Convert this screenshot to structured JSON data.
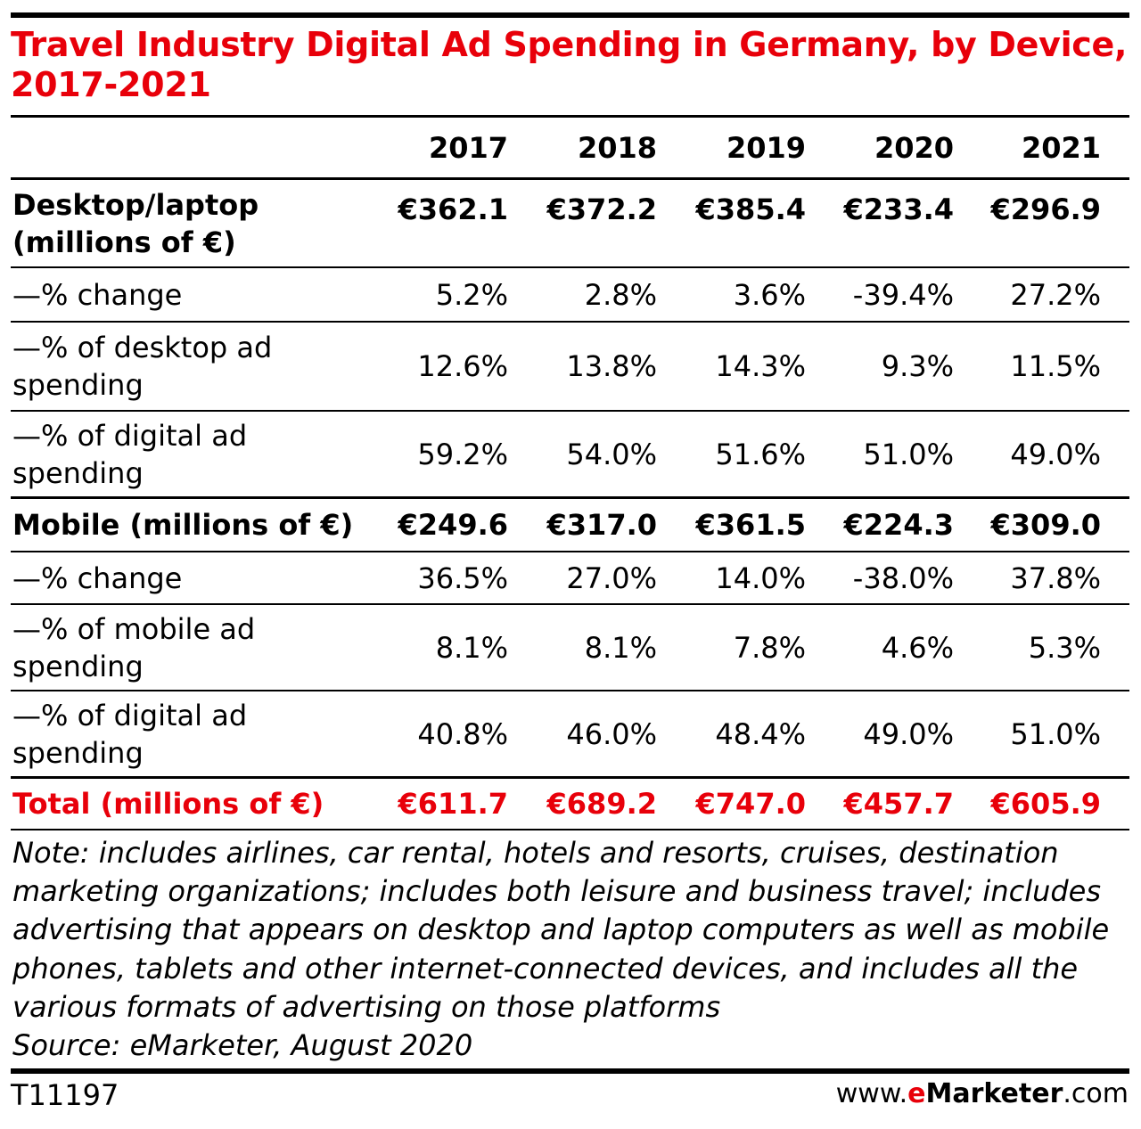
{
  "title": "Travel Industry Digital Ad Spending in Germany, by Device, 2017-2021",
  "columns": [
    "2017",
    "2018",
    "2019",
    "2020",
    "2021"
  ],
  "rows": [
    {
      "label": "Desktop/laptop (millions of €)",
      "values": [
        "€362.1",
        "€372.2",
        "€385.4",
        "€233.4",
        "€296.9"
      ]
    },
    {
      "label": "—% change",
      "values": [
        "5.2%",
        "2.8%",
        "3.6%",
        "-39.4%",
        "27.2%"
      ]
    },
    {
      "label": "—% of desktop ad spending",
      "values": [
        "12.6%",
        "13.8%",
        "14.3%",
        "9.3%",
        "11.5%"
      ]
    },
    {
      "label": "—% of digital ad spending",
      "values": [
        "59.2%",
        "54.0%",
        "51.6%",
        "51.0%",
        "49.0%"
      ]
    },
    {
      "label": "Mobile (millions of €)",
      "values": [
        "€249.6",
        "€317.0",
        "€361.5",
        "€224.3",
        "€309.0"
      ]
    },
    {
      "label": "—% change",
      "values": [
        "36.5%",
        "27.0%",
        "14.0%",
        "-38.0%",
        "37.8%"
      ]
    },
    {
      "label": "—% of mobile ad spending",
      "values": [
        "8.1%",
        "8.1%",
        "7.8%",
        "4.6%",
        "5.3%"
      ]
    },
    {
      "label": "—% of digital ad spending",
      "values": [
        "40.8%",
        "46.0%",
        "48.4%",
        "49.0%",
        "51.0%"
      ]
    },
    {
      "label": "Total (millions of €)",
      "values": [
        "€611.7",
        "€689.2",
        "€747.0",
        "€457.7",
        "€605.9"
      ]
    }
  ],
  "note": "Note: includes airlines, car rental, hotels and resorts, cruises, destination marketing organizations; includes both leisure and business travel; includes advertising that appears on desktop and laptop computers as well as mobile phones, tablets and other internet-connected devices, and includes all the various formats of advertising on those platforms",
  "source": "Source: eMarketer, August 2020",
  "code": "T11197",
  "site": {
    "prefix": "www.",
    "brand_e": "e",
    "brand_rest": "Marketer",
    "suffix": ".com"
  },
  "colors": {
    "accent": "#e8000a",
    "text": "#000000"
  },
  "chart_data": {
    "type": "table",
    "title": "Travel Industry Digital Ad Spending in Germany, by Device, 2017-2021",
    "columns": [
      "2017",
      "2018",
      "2019",
      "2020",
      "2021"
    ],
    "series": [
      {
        "name": "Desktop/laptop (millions of €)",
        "values": [
          362.1,
          372.2,
          385.4,
          233.4,
          296.9
        ]
      },
      {
        "name": "Desktop/laptop —% change",
        "values": [
          5.2,
          2.8,
          3.6,
          -39.4,
          27.2
        ]
      },
      {
        "name": "Desktop/laptop —% of desktop ad spending",
        "values": [
          12.6,
          13.8,
          14.3,
          9.3,
          11.5
        ]
      },
      {
        "name": "Desktop/laptop —% of digital ad spending",
        "values": [
          59.2,
          54.0,
          51.6,
          51.0,
          49.0
        ]
      },
      {
        "name": "Mobile (millions of €)",
        "values": [
          249.6,
          317.0,
          361.5,
          224.3,
          309.0
        ]
      },
      {
        "name": "Mobile —% change",
        "values": [
          36.5,
          27.0,
          14.0,
          -38.0,
          37.8
        ]
      },
      {
        "name": "Mobile —% of mobile ad spending",
        "values": [
          8.1,
          8.1,
          7.8,
          4.6,
          5.3
        ]
      },
      {
        "name": "Mobile —% of digital ad spending",
        "values": [
          40.8,
          46.0,
          48.4,
          49.0,
          51.0
        ]
      },
      {
        "name": "Total (millions of €)",
        "values": [
          611.7,
          689.2,
          747.0,
          457.7,
          605.9
        ]
      }
    ]
  }
}
